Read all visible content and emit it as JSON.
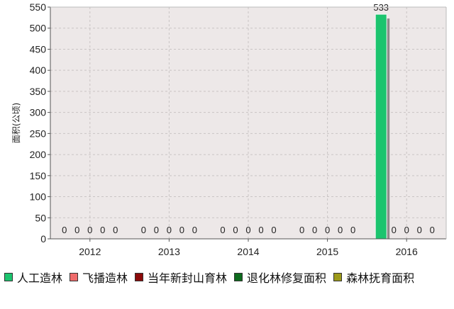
{
  "chart_data": {
    "type": "bar",
    "categories": [
      "2012",
      "2013",
      "2014",
      "2015",
      "2016"
    ],
    "series": [
      {
        "name": "人工造林",
        "color": "#1cc46e",
        "values": [
          0,
          0,
          0,
          0,
          533
        ]
      },
      {
        "name": "飞播造林",
        "color": "#ef6b6b",
        "values": [
          0,
          0,
          0,
          0,
          0
        ]
      },
      {
        "name": "当年新封山育林",
        "color": "#8b0a0a",
        "values": [
          0,
          0,
          0,
          0,
          0
        ]
      },
      {
        "name": "退化林修复面积",
        "color": "#0e6b1e",
        "values": [
          0,
          0,
          0,
          0,
          0
        ]
      },
      {
        "name": "森林抚育面积",
        "color": "#9d9a1a",
        "values": [
          0,
          0,
          0,
          0,
          0
        ]
      }
    ],
    "ylabel": "面积(公顷)",
    "ylim": [
      0,
      550
    ],
    "yticks": [
      0,
      50,
      100,
      150,
      200,
      250,
      300,
      350,
      400,
      450,
      500,
      550
    ],
    "grid": true,
    "legend_position": "bottom",
    "plot_background": "#ede8e8"
  }
}
